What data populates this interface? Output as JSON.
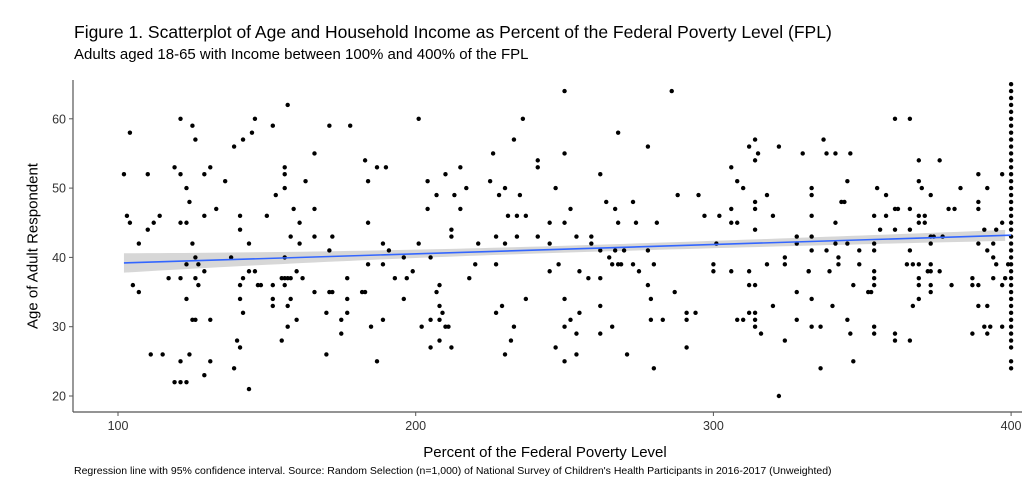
{
  "chart_data": {
    "type": "scatter",
    "title": "Figure 1. Scatterplot of Age and Household Income as Percent of the Federal Poverty Level (FPL)",
    "subtitle": "Adults aged 18-65 with Income between 100% and 400% of the FPL",
    "xlabel": "Percent of the Federal Poverty Level",
    "ylabel": "Age of Adult Respondent",
    "caption": "Regression line with 95% confidence interval. Source: Random Selection (n=1,000) of National Survey of Children's Health Participants in 2016-2017 (Unweighted)",
    "xticks": [
      100,
      200,
      300,
      400
    ],
    "yticks": [
      20,
      30,
      40,
      50,
      60
    ],
    "xlim": [
      85,
      403
    ],
    "ylim": [
      18,
      65.5
    ],
    "grid": false,
    "colors": {
      "points": "#000000",
      "regression_line": "#3366ff",
      "confidence_band": "#d3d3d3",
      "axis": "#555555"
    },
    "regression": {
      "x": [
        102,
        400
      ],
      "y": [
        39.2,
        43.2
      ],
      "ci_halfwidth_at_ends": [
        1.4,
        0.8
      ],
      "ci_halfwidth_min": 0.5,
      "ci_min_at_x": 250
    },
    "points_at_400_ages": [
      24,
      25,
      27,
      28,
      29,
      30,
      31,
      32,
      33,
      34,
      35,
      36,
      37,
      38,
      39,
      40,
      41,
      42,
      43,
      44,
      45,
      46,
      47,
      48,
      49,
      50,
      51,
      52,
      53,
      54,
      55,
      56,
      57,
      58,
      59,
      60,
      61,
      62,
      63,
      64,
      65
    ],
    "points": [
      [
        157,
        62
      ],
      [
        121,
        60
      ],
      [
        146,
        60
      ],
      [
        125,
        59
      ],
      [
        152,
        59
      ],
      [
        171,
        59
      ],
      [
        104,
        58
      ],
      [
        145,
        58
      ],
      [
        126,
        57
      ],
      [
        142,
        57
      ],
      [
        139,
        56
      ],
      [
        166,
        55
      ],
      [
        119,
        53
      ],
      [
        131,
        53
      ],
      [
        156,
        53
      ],
      [
        102,
        52
      ],
      [
        110,
        52
      ],
      [
        121,
        52
      ],
      [
        129,
        52
      ],
      [
        156,
        52
      ],
      [
        136,
        51
      ],
      [
        163,
        51
      ],
      [
        123,
        50
      ],
      [
        156,
        50
      ],
      [
        153,
        49
      ],
      [
        124,
        48
      ],
      [
        133,
        47
      ],
      [
        159,
        47
      ],
      [
        166,
        47
      ],
      [
        103,
        46
      ],
      [
        114,
        46
      ],
      [
        129,
        46
      ],
      [
        141,
        46
      ],
      [
        150,
        46
      ],
      [
        104,
        45
      ],
      [
        112,
        45
      ],
      [
        121,
        45
      ],
      [
        123,
        45
      ],
      [
        161,
        45
      ],
      [
        110,
        44
      ],
      [
        141,
        44
      ],
      [
        158,
        43
      ],
      [
        166,
        43
      ],
      [
        172,
        43
      ],
      [
        107,
        42
      ],
      [
        125,
        42
      ],
      [
        144,
        42
      ],
      [
        161,
        42
      ],
      [
        171,
        41
      ],
      [
        126,
        40
      ],
      [
        138,
        40
      ],
      [
        156,
        40
      ],
      [
        123,
        39
      ],
      [
        127,
        39
      ],
      [
        129,
        38
      ],
      [
        144,
        38
      ],
      [
        146,
        38
      ],
      [
        160,
        38
      ],
      [
        117,
        37
      ],
      [
        121,
        37
      ],
      [
        126,
        37
      ],
      [
        142,
        37
      ],
      [
        155,
        37
      ],
      [
        156,
        37
      ],
      [
        157,
        37
      ],
      [
        158,
        37
      ],
      [
        162,
        37
      ],
      [
        105,
        36
      ],
      [
        127,
        36
      ],
      [
        141,
        36
      ],
      [
        147,
        36
      ],
      [
        148,
        36
      ],
      [
        152,
        36
      ],
      [
        156,
        36
      ],
      [
        107,
        35
      ],
      [
        166,
        35
      ],
      [
        171,
        35
      ],
      [
        172,
        35
      ],
      [
        123,
        34
      ],
      [
        141,
        34
      ],
      [
        152,
        34
      ],
      [
        158,
        34
      ],
      [
        152,
        33
      ],
      [
        157,
        33
      ],
      [
        142,
        32
      ],
      [
        170,
        32
      ],
      [
        125,
        31
      ],
      [
        126,
        31
      ],
      [
        131,
        31
      ],
      [
        160,
        31
      ],
      [
        157,
        30
      ],
      [
        140,
        28
      ],
      [
        155,
        28
      ],
      [
        141,
        27
      ],
      [
        111,
        26
      ],
      [
        115,
        26
      ],
      [
        124,
        26
      ],
      [
        170,
        26
      ],
      [
        121,
        25
      ],
      [
        131,
        25
      ],
      [
        139,
        24
      ],
      [
        129,
        23
      ],
      [
        119,
        22
      ],
      [
        121,
        22
      ],
      [
        123,
        22
      ],
      [
        144,
        21
      ],
      [
        250,
        64
      ],
      [
        178,
        59
      ],
      [
        201,
        60
      ],
      [
        236,
        60
      ],
      [
        233,
        57
      ],
      [
        226,
        55
      ],
      [
        250,
        55
      ],
      [
        183,
        54
      ],
      [
        241,
        54
      ],
      [
        187,
        53
      ],
      [
        190,
        53
      ],
      [
        215,
        53
      ],
      [
        241,
        53
      ],
      [
        210,
        52
      ],
      [
        184,
        51
      ],
      [
        204,
        51
      ],
      [
        225,
        51
      ],
      [
        217,
        50
      ],
      [
        230,
        50
      ],
      [
        247,
        50
      ],
      [
        207,
        49
      ],
      [
        213,
        49
      ],
      [
        228,
        49
      ],
      [
        235,
        49
      ],
      [
        204,
        47
      ],
      [
        215,
        47
      ],
      [
        252,
        47
      ],
      [
        231,
        46
      ],
      [
        234,
        46
      ],
      [
        237,
        46
      ],
      [
        184,
        45
      ],
      [
        245,
        45
      ],
      [
        250,
        45
      ],
      [
        212,
        44
      ],
      [
        212,
        43
      ],
      [
        227,
        43
      ],
      [
        234,
        43
      ],
      [
        241,
        43
      ],
      [
        189,
        42
      ],
      [
        201,
        42
      ],
      [
        221,
        42
      ],
      [
        230,
        42
      ],
      [
        245,
        42
      ],
      [
        191,
        41
      ],
      [
        196,
        40
      ],
      [
        205,
        40
      ],
      [
        184,
        39
      ],
      [
        189,
        39
      ],
      [
        220,
        39
      ],
      [
        227,
        39
      ],
      [
        248,
        39
      ],
      [
        199,
        38
      ],
      [
        245,
        38
      ],
      [
        177,
        37
      ],
      [
        193,
        37
      ],
      [
        197,
        37
      ],
      [
        218,
        37
      ],
      [
        208,
        36
      ],
      [
        182,
        35
      ],
      [
        183,
        35
      ],
      [
        207,
        35
      ],
      [
        177,
        34
      ],
      [
        196,
        34
      ],
      [
        237,
        34
      ],
      [
        250,
        34
      ],
      [
        208,
        33
      ],
      [
        229,
        33
      ],
      [
        177,
        32
      ],
      [
        209,
        32
      ],
      [
        227,
        32
      ],
      [
        175,
        31
      ],
      [
        189,
        31
      ],
      [
        205,
        31
      ],
      [
        208,
        31
      ],
      [
        252,
        31
      ],
      [
        185,
        30
      ],
      [
        202,
        30
      ],
      [
        210,
        30
      ],
      [
        211,
        30
      ],
      [
        233,
        30
      ],
      [
        250,
        30
      ],
      [
        175,
        29
      ],
      [
        208,
        28
      ],
      [
        232,
        28
      ],
      [
        205,
        27
      ],
      [
        212,
        27
      ],
      [
        247,
        27
      ],
      [
        230,
        26
      ],
      [
        187,
        25
      ],
      [
        250,
        25
      ],
      [
        286,
        64
      ],
      [
        268,
        58
      ],
      [
        278,
        56
      ],
      [
        312,
        56
      ],
      [
        322,
        56
      ],
      [
        314,
        57
      ],
      [
        315,
        55
      ],
      [
        330,
        55
      ],
      [
        314,
        54
      ],
      [
        306,
        53
      ],
      [
        262,
        52
      ],
      [
        308,
        51
      ],
      [
        310,
        50
      ],
      [
        288,
        49
      ],
      [
        295,
        49
      ],
      [
        318,
        49
      ],
      [
        264,
        48
      ],
      [
        273,
        48
      ],
      [
        314,
        48
      ],
      [
        267,
        47
      ],
      [
        306,
        47
      ],
      [
        314,
        47
      ],
      [
        297,
        46
      ],
      [
        302,
        46
      ],
      [
        320,
        46
      ],
      [
        268,
        45
      ],
      [
        274,
        45
      ],
      [
        281,
        45
      ],
      [
        306,
        45
      ],
      [
        308,
        45
      ],
      [
        314,
        44
      ],
      [
        254,
        43
      ],
      [
        259,
        43
      ],
      [
        328,
        43
      ],
      [
        259,
        42
      ],
      [
        301,
        42
      ],
      [
        328,
        42
      ],
      [
        262,
        41
      ],
      [
        267,
        41
      ],
      [
        270,
        41
      ],
      [
        278,
        41
      ],
      [
        265,
        40
      ],
      [
        324,
        40
      ],
      [
        266,
        39
      ],
      [
        268,
        39
      ],
      [
        269,
        39
      ],
      [
        273,
        39
      ],
      [
        280,
        39
      ],
      [
        300,
        39
      ],
      [
        318,
        39
      ],
      [
        324,
        39
      ],
      [
        255,
        38
      ],
      [
        275,
        38
      ],
      [
        300,
        38
      ],
      [
        306,
        38
      ],
      [
        312,
        38
      ],
      [
        332,
        38
      ],
      [
        258,
        37
      ],
      [
        262,
        37
      ],
      [
        278,
        36
      ],
      [
        312,
        36
      ],
      [
        314,
        36
      ],
      [
        287,
        35
      ],
      [
        328,
        35
      ],
      [
        279,
        34
      ],
      [
        262,
        33
      ],
      [
        320,
        33
      ],
      [
        255,
        32
      ],
      [
        291,
        32
      ],
      [
        294,
        32
      ],
      [
        312,
        32
      ],
      [
        314,
        32
      ],
      [
        279,
        31
      ],
      [
        283,
        31
      ],
      [
        291,
        31
      ],
      [
        308,
        31
      ],
      [
        310,
        31
      ],
      [
        314,
        31
      ],
      [
        328,
        31
      ],
      [
        266,
        30
      ],
      [
        314,
        30
      ],
      [
        254,
        29
      ],
      [
        262,
        29
      ],
      [
        316,
        29
      ],
      [
        324,
        28
      ],
      [
        291,
        27
      ],
      [
        254,
        26
      ],
      [
        271,
        26
      ],
      [
        280,
        24
      ],
      [
        322,
        20
      ],
      [
        361,
        60
      ],
      [
        366,
        60
      ],
      [
        337,
        57
      ],
      [
        338,
        55
      ],
      [
        341,
        55
      ],
      [
        346,
        55
      ],
      [
        369,
        54
      ],
      [
        376,
        54
      ],
      [
        389,
        52
      ],
      [
        397,
        52
      ],
      [
        345,
        51
      ],
      [
        369,
        51
      ],
      [
        333,
        50
      ],
      [
        355,
        50
      ],
      [
        370,
        50
      ],
      [
        383,
        50
      ],
      [
        392,
        50
      ],
      [
        333,
        49
      ],
      [
        358,
        49
      ],
      [
        373,
        49
      ],
      [
        343,
        48
      ],
      [
        344,
        48
      ],
      [
        389,
        48
      ],
      [
        361,
        47
      ],
      [
        362,
        47
      ],
      [
        366,
        47
      ],
      [
        379,
        47
      ],
      [
        381,
        47
      ],
      [
        389,
        47
      ],
      [
        333,
        46
      ],
      [
        354,
        46
      ],
      [
        358,
        46
      ],
      [
        369,
        46
      ],
      [
        371,
        46
      ],
      [
        341,
        45
      ],
      [
        369,
        45
      ],
      [
        371,
        45
      ],
      [
        397,
        45
      ],
      [
        356,
        44
      ],
      [
        361,
        44
      ],
      [
        366,
        44
      ],
      [
        391,
        44
      ],
      [
        395,
        44
      ],
      [
        333,
        43
      ],
      [
        373,
        43
      ],
      [
        374,
        43
      ],
      [
        377,
        43
      ],
      [
        341,
        42
      ],
      [
        345,
        42
      ],
      [
        354,
        42
      ],
      [
        373,
        42
      ],
      [
        389,
        42
      ],
      [
        394,
        42
      ],
      [
        333,
        41
      ],
      [
        338,
        41
      ],
      [
        349,
        41
      ],
      [
        354,
        41
      ],
      [
        366,
        41
      ],
      [
        392,
        41
      ],
      [
        342,
        40
      ],
      [
        394,
        40
      ],
      [
        342,
        39
      ],
      [
        349,
        39
      ],
      [
        365,
        39
      ],
      [
        367,
        39
      ],
      [
        369,
        39
      ],
      [
        373,
        39
      ],
      [
        395,
        39
      ],
      [
        399,
        39
      ],
      [
        332,
        38
      ],
      [
        339,
        38
      ],
      [
        354,
        38
      ],
      [
        372,
        38
      ],
      [
        373,
        38
      ],
      [
        376,
        38
      ],
      [
        354,
        37
      ],
      [
        369,
        37
      ],
      [
        387,
        37
      ],
      [
        394,
        37
      ],
      [
        398,
        37
      ],
      [
        347,
        36
      ],
      [
        354,
        36
      ],
      [
        369,
        36
      ],
      [
        373,
        36
      ],
      [
        380,
        36
      ],
      [
        387,
        36
      ],
      [
        389,
        36
      ],
      [
        397,
        36
      ],
      [
        352,
        35
      ],
      [
        353,
        35
      ],
      [
        373,
        35
      ],
      [
        333,
        34
      ],
      [
        369,
        34
      ],
      [
        340,
        33
      ],
      [
        367,
        33
      ],
      [
        389,
        33
      ],
      [
        392,
        33
      ],
      [
        345,
        31
      ],
      [
        333,
        30
      ],
      [
        336,
        30
      ],
      [
        354,
        30
      ],
      [
        391,
        30
      ],
      [
        393,
        30
      ],
      [
        397,
        30
      ],
      [
        346,
        29
      ],
      [
        354,
        29
      ],
      [
        361,
        29
      ],
      [
        387,
        29
      ],
      [
        392,
        29
      ],
      [
        361,
        28
      ],
      [
        366,
        28
      ],
      [
        347,
        25
      ],
      [
        336,
        24
      ]
    ]
  }
}
